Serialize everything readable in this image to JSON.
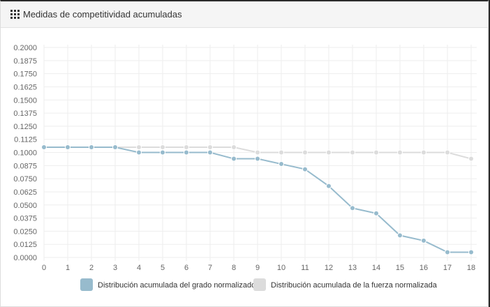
{
  "panel": {
    "title": "Medidas de competitividad acumuladas",
    "icon": "grid-icon"
  },
  "chart_data": {
    "type": "line",
    "x": [
      0,
      1,
      2,
      3,
      4,
      5,
      6,
      7,
      8,
      9,
      10,
      11,
      12,
      13,
      14,
      15,
      16,
      17,
      18
    ],
    "ylim": [
      0,
      0.2
    ],
    "yticks": [
      "0.0000",
      "0.0125",
      "0.0250",
      "0.0375",
      "0.0500",
      "0.0625",
      "0.0750",
      "0.0875",
      "0.1000",
      "0.1125",
      "0.1250",
      "0.1375",
      "0.1500",
      "0.1625",
      "0.1750",
      "0.1875",
      "0.2000"
    ],
    "xticks": [
      "0",
      "1",
      "2",
      "3",
      "4",
      "5",
      "6",
      "7",
      "8",
      "9",
      "10",
      "11",
      "12",
      "13",
      "14",
      "15",
      "16",
      "17",
      "18"
    ],
    "grid": true,
    "legend_position": "bottom",
    "series": [
      {
        "name": "Distribución acumulada del grado normalizado",
        "color": "#97bbcd",
        "values": [
          0.105,
          0.105,
          0.105,
          0.105,
          0.1,
          0.1,
          0.1,
          0.1,
          0.094,
          0.094,
          0.089,
          0.084,
          0.068,
          0.047,
          0.042,
          0.021,
          0.016,
          0.005,
          0.005
        ]
      },
      {
        "name": "Distribución acumulada de la fuerza normalizada",
        "color": "#dcdcdc",
        "values": [
          0.105,
          0.105,
          0.105,
          0.105,
          0.105,
          0.105,
          0.105,
          0.105,
          0.105,
          0.1,
          0.1,
          0.1,
          0.1,
          0.1,
          0.1,
          0.1,
          0.1,
          0.1,
          0.094
        ]
      }
    ]
  }
}
